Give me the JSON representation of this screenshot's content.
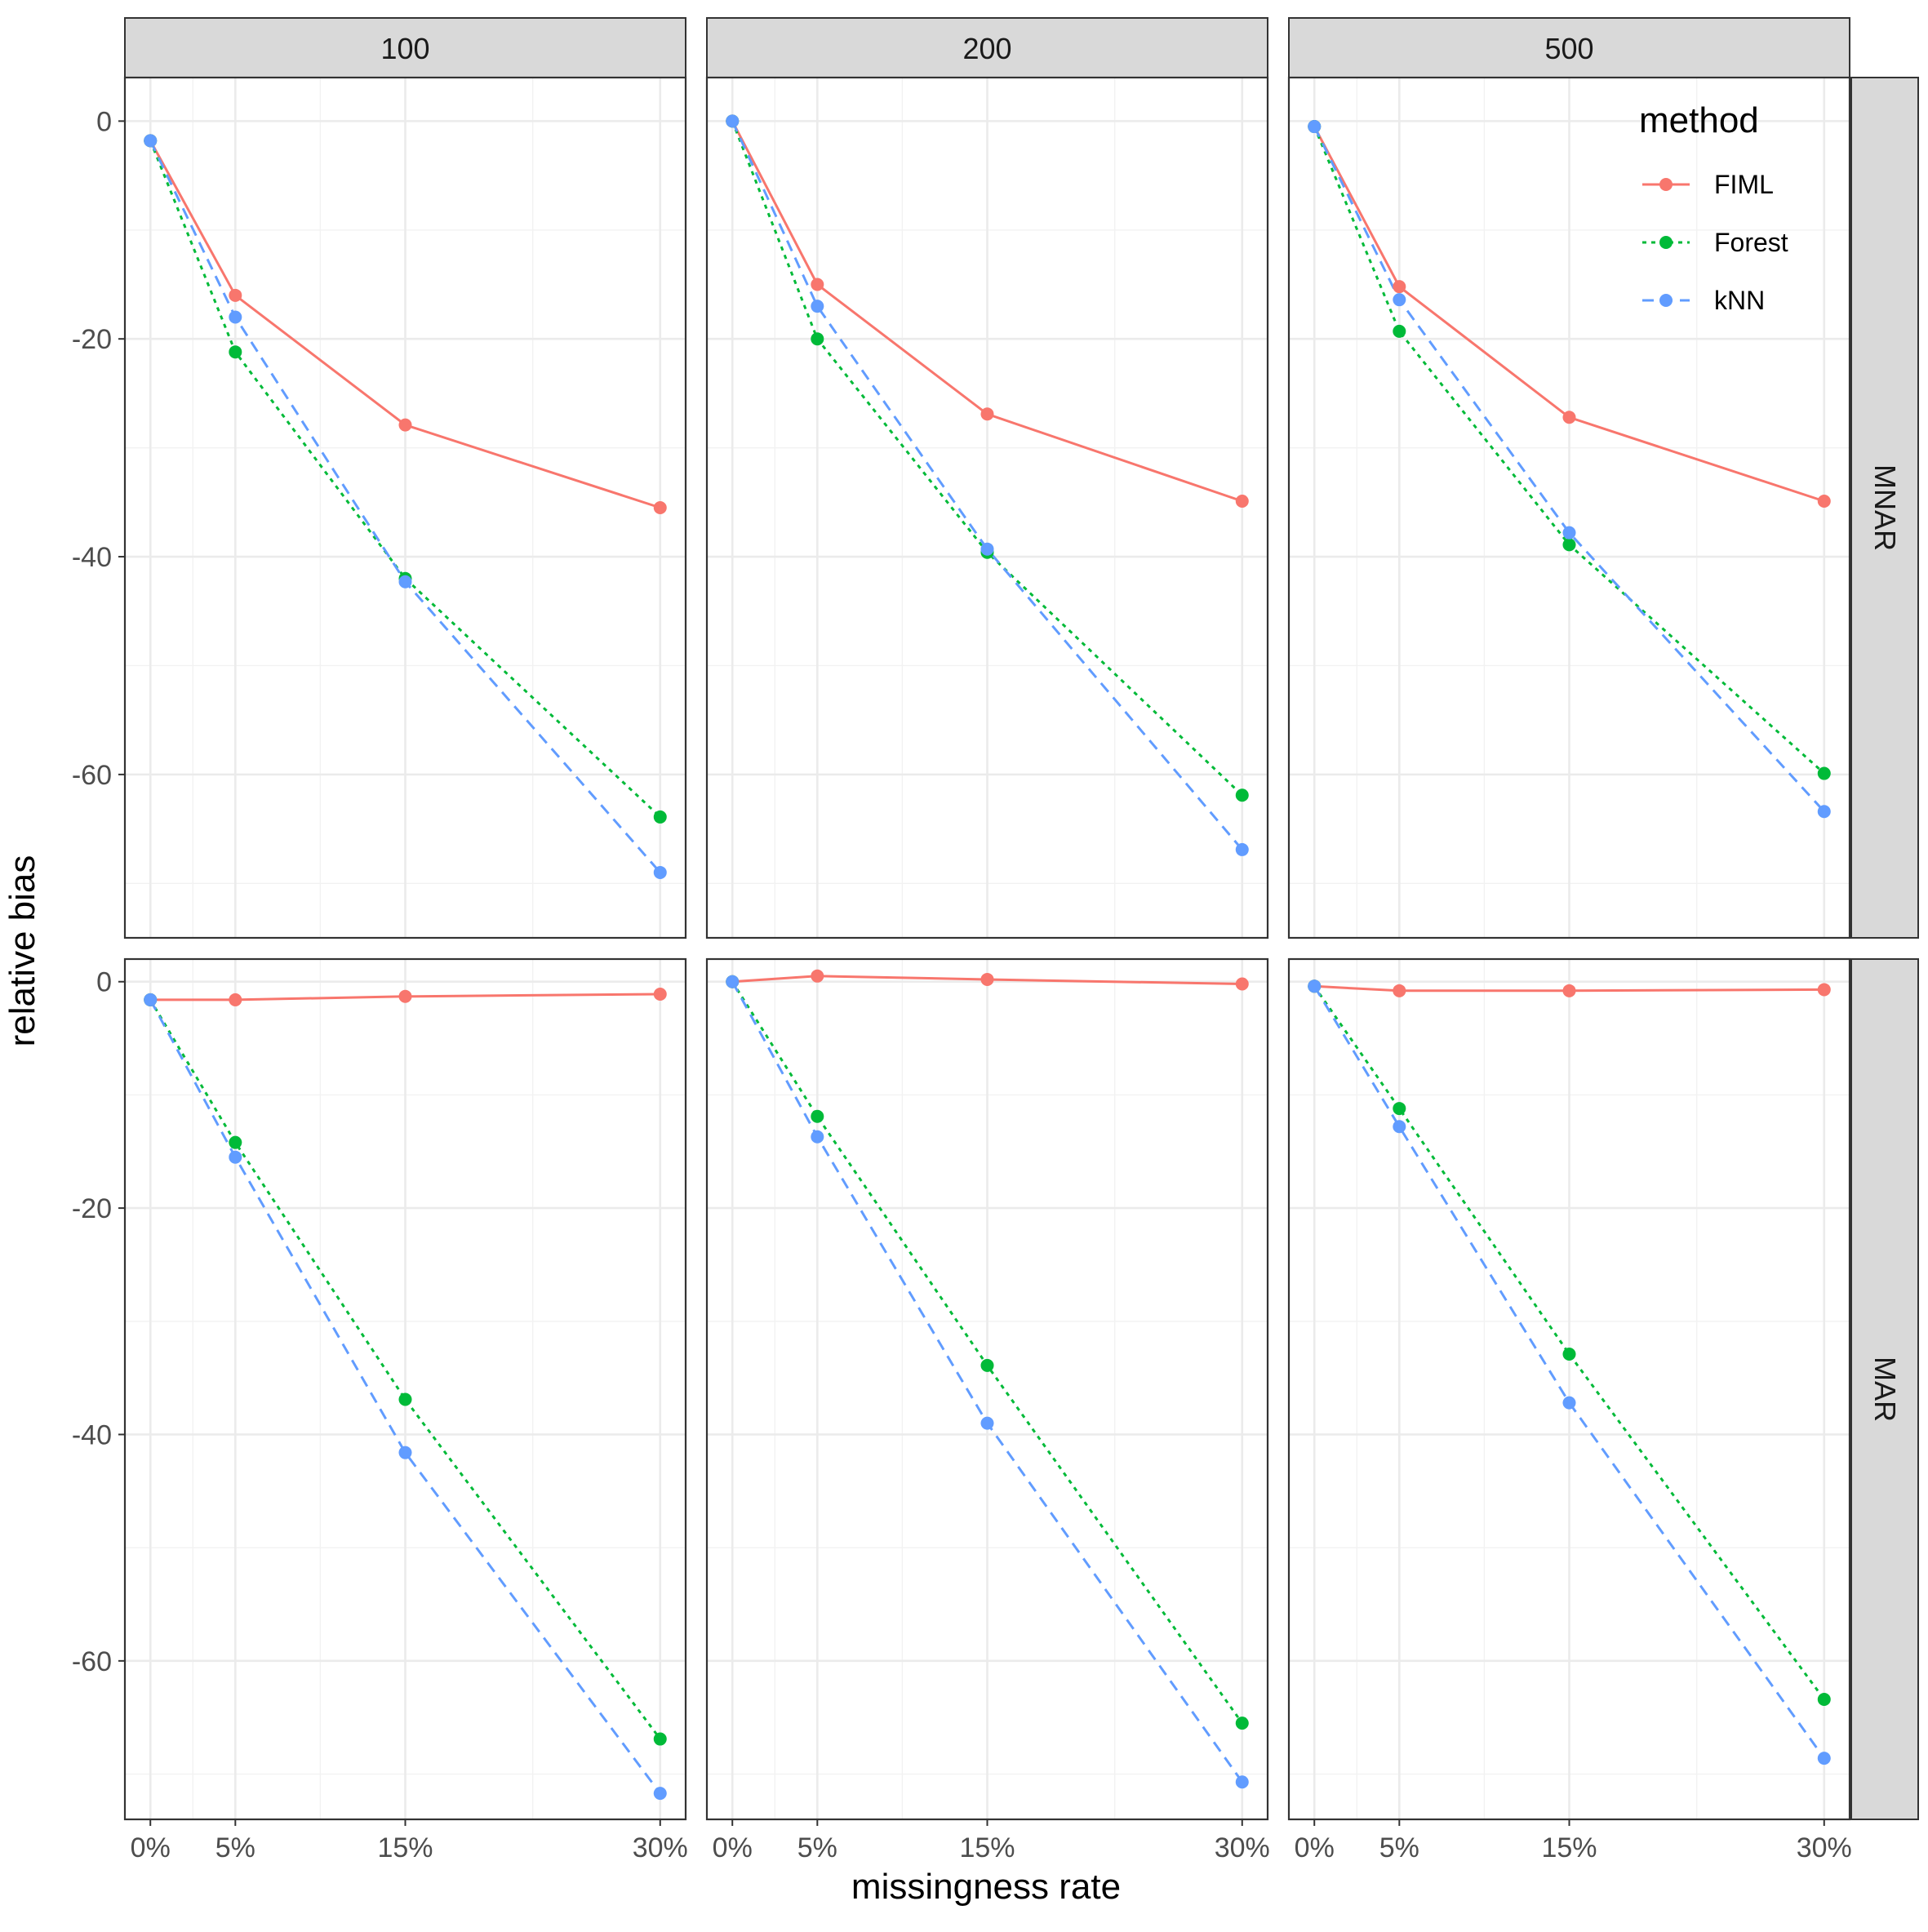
{
  "chart_data": {
    "type": "line",
    "facet_layout": "rows: mechanism, columns: sample size",
    "columns": [
      "100",
      "200",
      "500"
    ],
    "rows": [
      "MNAR",
      "MAR"
    ],
    "xlabel": "missingness rate",
    "ylabel": "relative bias",
    "x_ticks": [
      0,
      5,
      15,
      30
    ],
    "x_tick_labels": [
      "0%",
      "5%",
      "15%",
      "30%"
    ],
    "x_range": [
      -1.5,
      31.5
    ],
    "y_ticks": [
      0,
      -20,
      -40,
      -60
    ],
    "y_tick_labels": [
      "0",
      "-20",
      "-40",
      "-60"
    ],
    "y_range": [
      -74,
      4
    ],
    "y_range_by_row": {
      "MNAR": [
        -75,
        4
      ],
      "MAR": [
        -74,
        2
      ]
    },
    "legend": {
      "title": "method",
      "position": "top-right inside last panel",
      "entries": [
        {
          "name": "FIML",
          "color": "#F8766D",
          "dash": "solid"
        },
        {
          "name": "Forest",
          "color": "#00BA38",
          "dash": "dotted"
        },
        {
          "name": "kNN",
          "color": "#619CFF",
          "dash": "dashed"
        }
      ]
    },
    "panels": [
      {
        "row": "MNAR",
        "col": "100",
        "series": [
          {
            "name": "FIML",
            "x": [
              0,
              5,
              15,
              30
            ],
            "values": [
              -1.8,
              -16.0,
              -27.9,
              -35.5
            ]
          },
          {
            "name": "Forest",
            "x": [
              0,
              5,
              15,
              30
            ],
            "values": [
              -1.8,
              -21.2,
              -42.0,
              -63.9
            ]
          },
          {
            "name": "kNN",
            "x": [
              0,
              5,
              15,
              30
            ],
            "values": [
              -1.8,
              -18.0,
              -42.3,
              -69.0
            ]
          }
        ]
      },
      {
        "row": "MNAR",
        "col": "200",
        "series": [
          {
            "name": "FIML",
            "x": [
              0,
              5,
              15,
              30
            ],
            "values": [
              0.0,
              -15.0,
              -26.9,
              -34.9
            ]
          },
          {
            "name": "Forest",
            "x": [
              0,
              5,
              15,
              30
            ],
            "values": [
              0.0,
              -20.0,
              -39.6,
              -61.9
            ]
          },
          {
            "name": "kNN",
            "x": [
              0,
              5,
              15,
              30
            ],
            "values": [
              0.0,
              -17.0,
              -39.3,
              -66.9
            ]
          }
        ]
      },
      {
        "row": "MNAR",
        "col": "500",
        "series": [
          {
            "name": "FIML",
            "x": [
              0,
              5,
              15,
              30
            ],
            "values": [
              -0.5,
              -15.2,
              -27.2,
              -34.9
            ]
          },
          {
            "name": "Forest",
            "x": [
              0,
              5,
              15,
              30
            ],
            "values": [
              -0.5,
              -19.3,
              -38.9,
              -59.9
            ]
          },
          {
            "name": "kNN",
            "x": [
              0,
              5,
              15,
              30
            ],
            "values": [
              -0.5,
              -16.4,
              -37.8,
              -63.4
            ]
          }
        ]
      },
      {
        "row": "MAR",
        "col": "100",
        "series": [
          {
            "name": "FIML",
            "x": [
              0,
              5,
              15,
              30
            ],
            "values": [
              -1.6,
              -1.6,
              -1.3,
              -1.1
            ]
          },
          {
            "name": "Forest",
            "x": [
              0,
              5,
              15,
              30
            ],
            "values": [
              -1.6,
              -14.2,
              -36.9,
              -66.9
            ]
          },
          {
            "name": "kNN",
            "x": [
              0,
              5,
              15,
              30
            ],
            "values": [
              -1.6,
              -15.5,
              -41.6,
              -71.7
            ]
          }
        ]
      },
      {
        "row": "MAR",
        "col": "200",
        "series": [
          {
            "name": "FIML",
            "x": [
              0,
              5,
              15,
              30
            ],
            "values": [
              0.0,
              0.5,
              0.2,
              -0.2
            ]
          },
          {
            "name": "Forest",
            "x": [
              0,
              5,
              15,
              30
            ],
            "values": [
              0.0,
              -11.9,
              -33.9,
              -65.5
            ]
          },
          {
            "name": "kNN",
            "x": [
              0,
              5,
              15,
              30
            ],
            "values": [
              0.0,
              -13.7,
              -39.0,
              -70.7
            ]
          }
        ]
      },
      {
        "row": "MAR",
        "col": "500",
        "series": [
          {
            "name": "FIML",
            "x": [
              0,
              5,
              15,
              30
            ],
            "values": [
              -0.4,
              -0.8,
              -0.8,
              -0.7
            ]
          },
          {
            "name": "Forest",
            "x": [
              0,
              5,
              15,
              30
            ],
            "values": [
              -0.4,
              -11.2,
              -32.9,
              -63.4
            ]
          },
          {
            "name": "kNN",
            "x": [
              0,
              5,
              15,
              30
            ],
            "values": [
              -0.4,
              -12.8,
              -37.2,
              -68.6
            ]
          }
        ]
      }
    ]
  }
}
